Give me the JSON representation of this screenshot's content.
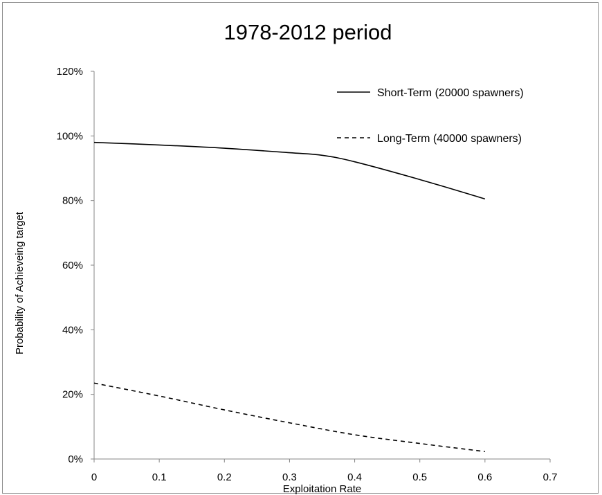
{
  "chart_data": {
    "type": "line",
    "title": "1978-2012 period",
    "xlabel": "Exploitation Rate",
    "ylabel": "Probability of Achieveing target",
    "xlim": [
      0,
      0.7
    ],
    "ylim": [
      0,
      1.2
    ],
    "x_ticks": [
      "0",
      "0.1",
      "0.2",
      "0.3",
      "0.4",
      "0.5",
      "0.6",
      "0.7"
    ],
    "y_ticks": [
      "0%",
      "20%",
      "40%",
      "60%",
      "80%",
      "100%",
      "120%"
    ],
    "grid": false,
    "legend_position": "top-right",
    "series": [
      {
        "name": "Short-Term (20000 spawners)",
        "line_style": "solid",
        "color": "#000000",
        "x": [
          0,
          0.1,
          0.2,
          0.3,
          0.35,
          0.4,
          0.5,
          0.6
        ],
        "y": [
          0.98,
          0.972,
          0.962,
          0.948,
          0.94,
          0.92,
          0.865,
          0.805
        ]
      },
      {
        "name": "Long-Term (40000 spawners)",
        "line_style": "dashed",
        "color": "#000000",
        "x": [
          0,
          0.1,
          0.2,
          0.3,
          0.4,
          0.5,
          0.6
        ],
        "y": [
          0.235,
          0.195,
          0.152,
          0.112,
          0.075,
          0.048,
          0.023
        ]
      }
    ]
  }
}
